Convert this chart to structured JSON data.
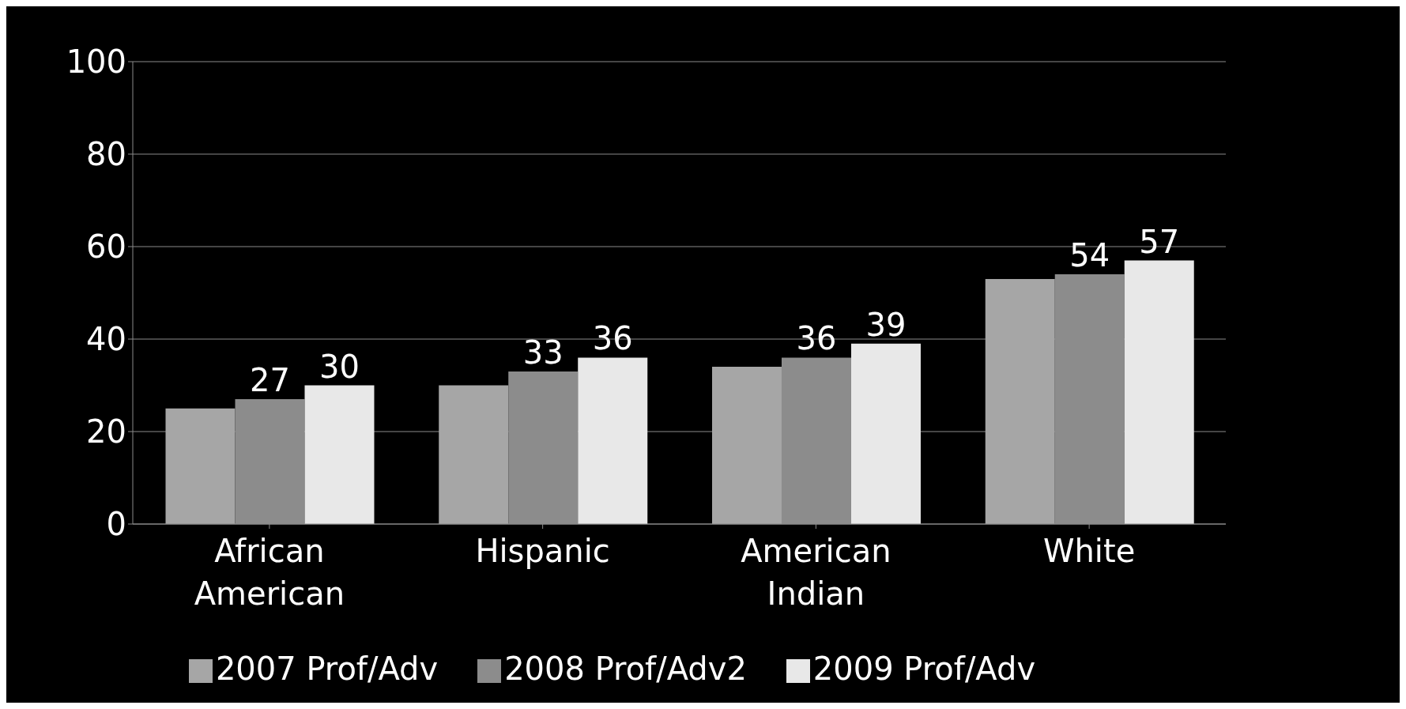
{
  "chart_data": {
    "type": "bar",
    "categories": [
      "African American",
      "Hispanic",
      "American Indian",
      "White"
    ],
    "series": [
      {
        "name": "2007 Prof/Adv",
        "color": "#a6a6a6",
        "values": [
          25,
          30,
          34,
          53
        ]
      },
      {
        "name": "2008 Prof/Adv2",
        "color": "#8c8c8c",
        "values": [
          27,
          33,
          36,
          54
        ],
        "value_labels": [
          "27",
          "33",
          "36",
          "54"
        ]
      },
      {
        "name": "2009 Prof/Adv",
        "color": "#e8e8e8",
        "values": [
          30,
          36,
          39,
          57
        ],
        "value_labels": [
          "30",
          "36",
          "39",
          "57"
        ]
      }
    ],
    "ylim": [
      0,
      100
    ],
    "yticks": [
      0,
      20,
      40,
      60,
      80,
      100
    ],
    "grid": "y",
    "legend": "bottom"
  }
}
